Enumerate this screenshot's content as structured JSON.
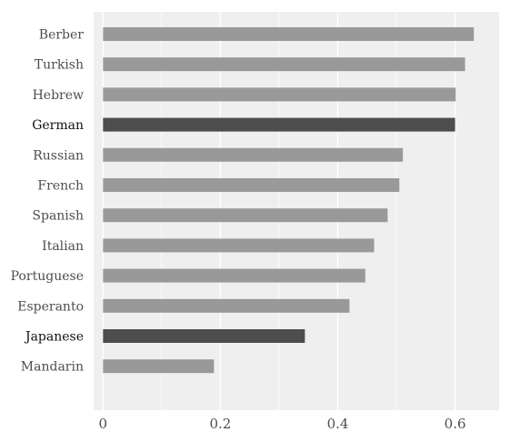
{
  "chart_data": {
    "type": "bar",
    "orientation": "horizontal",
    "categories": [
      "Berber",
      "Turkish",
      "Hebrew",
      "German",
      "Russian",
      "French",
      "Spanish",
      "Italian",
      "Portuguese",
      "Esperanto",
      "Japanese",
      "Mandarin"
    ],
    "values": [
      0.632,
      0.617,
      0.601,
      0.6,
      0.511,
      0.505,
      0.485,
      0.462,
      0.447,
      0.42,
      0.344,
      0.189
    ],
    "highlighted": [
      "German",
      "Japanese"
    ],
    "x_ticks": [
      "0",
      "0.2",
      "0.4",
      "0.6"
    ],
    "xlim": [
      -0.016,
      0.675
    ],
    "title": "",
    "xlabel": "",
    "ylabel": "",
    "grid": true,
    "colors": {
      "panel": "#efefef",
      "grid": "#ffffff",
      "bar": "#999999",
      "bar_highlight": "#4d4d4d",
      "label": "#4d4d4d",
      "label_highlight": "#111111"
    }
  }
}
